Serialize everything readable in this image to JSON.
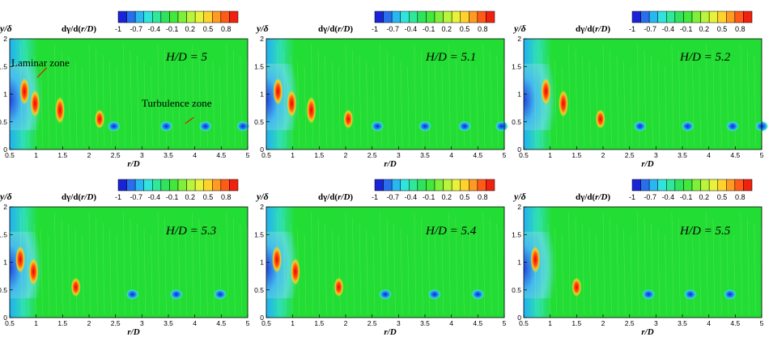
{
  "chart_data": [
    {
      "type": "heatmap",
      "annotation": "H/D = 5",
      "zone_labels": [
        "Laminar zone",
        "Turbulence zone"
      ],
      "x_peaks": [
        0.78,
        0.98,
        1.45,
        2.2
      ],
      "x_troughs": [
        2.47,
        3.46,
        4.2,
        4.91
      ]
    },
    {
      "type": "heatmap",
      "annotation": "H/D = 5.1",
      "zone_labels": [],
      "x_peaks": [
        0.72,
        0.98,
        1.35,
        2.05
      ],
      "x_troughs": [
        2.6,
        3.5,
        4.25,
        4.95
      ]
    },
    {
      "type": "heatmap",
      "annotation": "H/D = 5.2",
      "zone_labels": [],
      "x_peaks": [
        0.92,
        1.25,
        1.95
      ],
      "x_troughs": [
        2.7,
        3.6,
        4.45,
        5.0
      ]
    },
    {
      "type": "heatmap",
      "annotation": "H/D = 5.3",
      "zone_labels": [],
      "x_peaks": [
        0.7,
        0.95,
        1.75
      ],
      "x_troughs": [
        2.82,
        3.65,
        4.48
      ]
    },
    {
      "type": "heatmap",
      "annotation": "H/D = 5.4",
      "zone_labels": [],
      "x_peaks": [
        0.7,
        1.05,
        1.87
      ],
      "x_troughs": [
        2.75,
        3.68,
        4.5
      ]
    },
    {
      "type": "heatmap",
      "annotation": "H/D = 5.5",
      "zone_labels": [],
      "x_peaks": [
        0.72,
        1.5
      ],
      "x_troughs": [
        2.86,
        3.65,
        4.4
      ]
    }
  ],
  "common": {
    "ylabel": "y/δ",
    "xlabel": "r/D",
    "colorbar_title_prefix": "dγ/d(",
    "colorbar_title_var": "r/D",
    "colorbar_title_suffix": ")",
    "x_ticks": [
      "0.5",
      "1",
      "1.5",
      "2",
      "2.5",
      "3",
      "3.5",
      "4",
      "4.5",
      "5"
    ],
    "y_ticks": [
      "0",
      "0.5",
      "1",
      "1.5",
      "2"
    ],
    "colorbar_ticks": [
      "-1",
      "-0.7",
      "-0.4",
      "-0.1",
      "0.2",
      "0.5",
      "0.8"
    ],
    "xlim": [
      0.5,
      5
    ],
    "ylim": [
      0,
      2
    ],
    "clim": [
      -1,
      1
    ],
    "colors": {
      "background": "#22dd33",
      "peak": "#ff2200",
      "trough": "#1133ee"
    }
  }
}
